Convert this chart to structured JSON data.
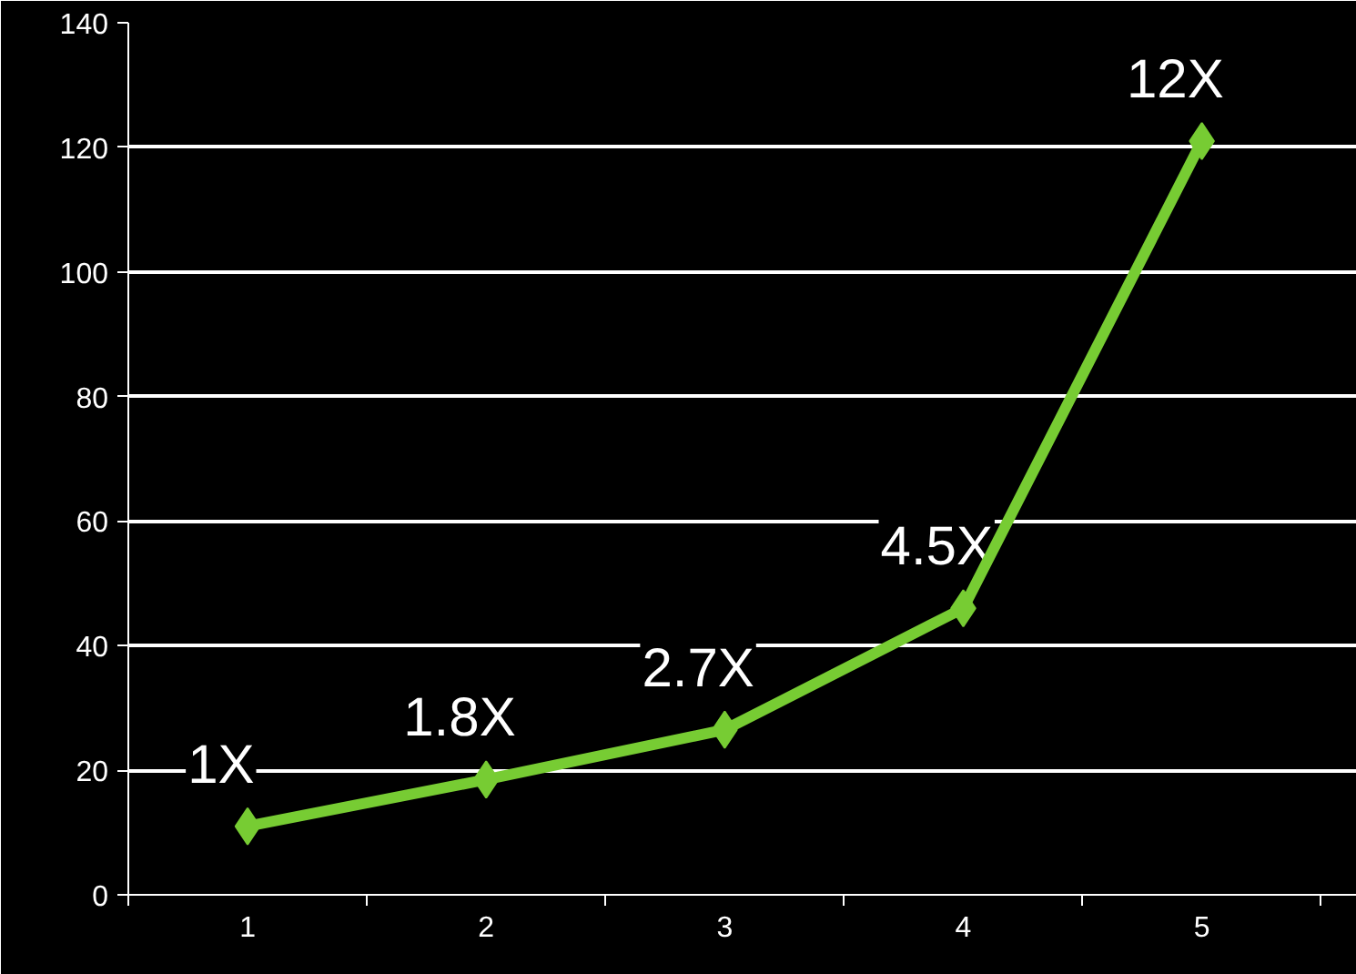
{
  "chart_data": {
    "type": "line",
    "categories": [
      "1",
      "2",
      "3",
      "4",
      "5"
    ],
    "series": [
      {
        "color": "#77cc33",
        "values": [
          11,
          18.5,
          26.5,
          46,
          121
        ]
      }
    ],
    "ylim": [
      0,
      140
    ],
    "yticks": [
      0,
      20,
      40,
      60,
      80,
      100,
      120,
      140
    ],
    "grid": "y",
    "marker": "diamond",
    "line_style": "solid",
    "annotations": [
      {
        "text": "1X",
        "x": "1",
        "y": 11
      },
      {
        "text": "1.8X",
        "x": "2",
        "y": 18.5
      },
      {
        "text": "2.7X",
        "x": "3",
        "y": 26.5
      },
      {
        "text": "4.5X",
        "x": "4",
        "y": 46
      },
      {
        "text": "12X",
        "x": "5",
        "y": 121
      }
    ]
  }
}
